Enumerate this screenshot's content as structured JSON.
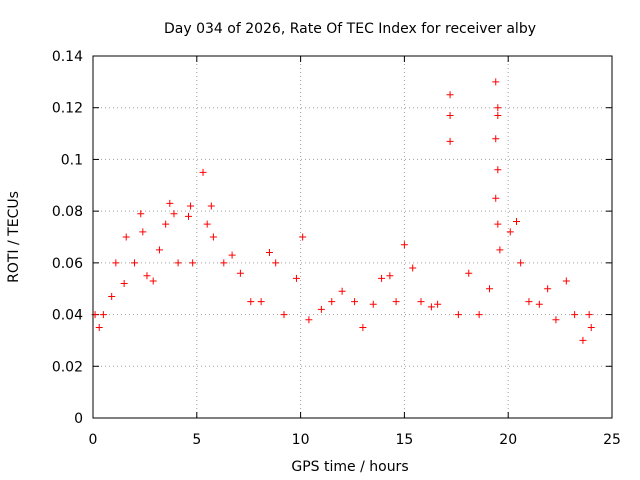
{
  "chart_data": {
    "type": "scatter",
    "title": "Day 034 of 2026, Rate Of TEC Index for receiver alby",
    "xlabel": "GPS time / hours",
    "ylabel": "ROTI / TECUs",
    "xlim": [
      0,
      25
    ],
    "ylim": [
      0,
      0.14
    ],
    "xticks": [
      0,
      5,
      10,
      15,
      20,
      25
    ],
    "xtick_labels": [
      "0",
      "5",
      "10",
      "15",
      "20",
      "25"
    ],
    "yticks": [
      0,
      0.02,
      0.04,
      0.06,
      0.08,
      0.1,
      0.12,
      0.14
    ],
    "ytick_labels": [
      "0",
      "0.02",
      "0.04",
      "0.06",
      "0.08",
      "0.1",
      "0.12",
      "0.14"
    ],
    "grid": true,
    "marker": "+",
    "color": "#ff0000",
    "series": [
      {
        "name": "ROTI",
        "points": [
          [
            0.1,
            0.04
          ],
          [
            0.3,
            0.035
          ],
          [
            0.5,
            0.04
          ],
          [
            0.9,
            0.047
          ],
          [
            1.1,
            0.06
          ],
          [
            1.5,
            0.052
          ],
          [
            1.6,
            0.07
          ],
          [
            2.0,
            0.06
          ],
          [
            2.3,
            0.079
          ],
          [
            2.4,
            0.072
          ],
          [
            2.6,
            0.055
          ],
          [
            2.9,
            0.053
          ],
          [
            3.2,
            0.065
          ],
          [
            3.5,
            0.075
          ],
          [
            3.7,
            0.083
          ],
          [
            3.9,
            0.079
          ],
          [
            4.1,
            0.06
          ],
          [
            4.6,
            0.078
          ],
          [
            4.7,
            0.082
          ],
          [
            4.8,
            0.06
          ],
          [
            5.3,
            0.095
          ],
          [
            5.5,
            0.075
          ],
          [
            5.7,
            0.082
          ],
          [
            5.8,
            0.07
          ],
          [
            6.3,
            0.06
          ],
          [
            6.7,
            0.063
          ],
          [
            7.1,
            0.056
          ],
          [
            7.6,
            0.045
          ],
          [
            8.1,
            0.045
          ],
          [
            8.5,
            0.064
          ],
          [
            8.8,
            0.06
          ],
          [
            9.2,
            0.04
          ],
          [
            9.8,
            0.054
          ],
          [
            10.1,
            0.07
          ],
          [
            10.4,
            0.038
          ],
          [
            11.0,
            0.042
          ],
          [
            11.5,
            0.045
          ],
          [
            12.0,
            0.049
          ],
          [
            12.6,
            0.045
          ],
          [
            13.0,
            0.035
          ],
          [
            13.5,
            0.044
          ],
          [
            13.9,
            0.054
          ],
          [
            14.3,
            0.055
          ],
          [
            14.6,
            0.045
          ],
          [
            15.0,
            0.067
          ],
          [
            15.4,
            0.058
          ],
          [
            15.8,
            0.045
          ],
          [
            16.3,
            0.043
          ],
          [
            16.6,
            0.044
          ],
          [
            17.2,
            0.125
          ],
          [
            17.2,
            0.117
          ],
          [
            17.2,
            0.107
          ],
          [
            17.6,
            0.04
          ],
          [
            18.1,
            0.056
          ],
          [
            18.6,
            0.04
          ],
          [
            19.1,
            0.05
          ],
          [
            19.4,
            0.13
          ],
          [
            19.5,
            0.12
          ],
          [
            19.5,
            0.117
          ],
          [
            19.4,
            0.108
          ],
          [
            19.5,
            0.096
          ],
          [
            19.4,
            0.085
          ],
          [
            19.5,
            0.075
          ],
          [
            19.6,
            0.065
          ],
          [
            20.1,
            0.072
          ],
          [
            20.4,
            0.076
          ],
          [
            20.6,
            0.06
          ],
          [
            21.0,
            0.045
          ],
          [
            21.5,
            0.044
          ],
          [
            21.9,
            0.05
          ],
          [
            22.3,
            0.038
          ],
          [
            22.8,
            0.053
          ],
          [
            23.2,
            0.04
          ],
          [
            23.6,
            0.03
          ],
          [
            23.9,
            0.04
          ],
          [
            24.0,
            0.035
          ]
        ]
      }
    ]
  }
}
